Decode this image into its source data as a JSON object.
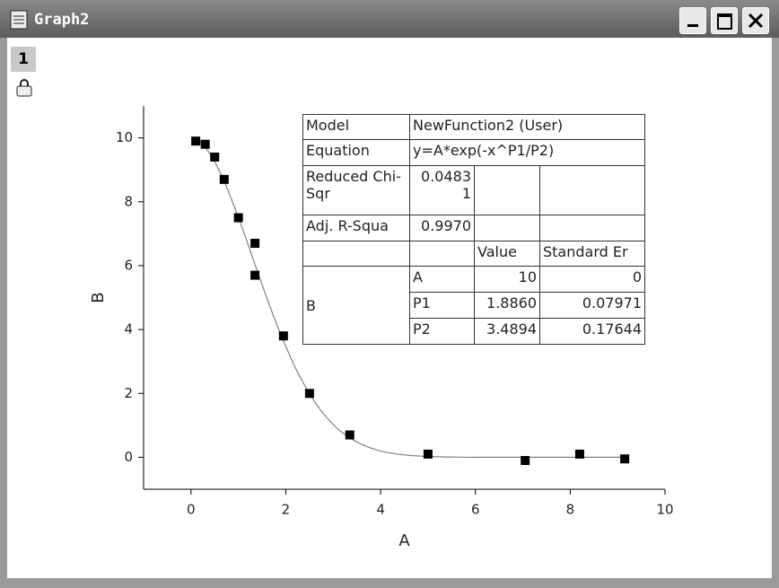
{
  "window": {
    "title": "Graph2",
    "layer": "1"
  },
  "chart_data": {
    "type": "scatter",
    "x_label": "A",
    "y_label": "B",
    "x": [
      0.1,
      0.3,
      0.5,
      0.7,
      1.0,
      1.35,
      1.35,
      1.95,
      2.5,
      3.35,
      5.0,
      7.05,
      8.2,
      9.15
    ],
    "values": [
      9.9,
      9.8,
      9.4,
      8.7,
      7.5,
      6.7,
      5.7,
      3.8,
      2.0,
      0.7,
      0.1,
      -0.1,
      0.1,
      -0.05
    ],
    "color": "#000000",
    "fit_color": "#808080",
    "xlim": [
      -1,
      10
    ],
    "xticks": [
      0,
      2,
      4,
      6,
      8,
      10
    ],
    "ylim": [
      -1,
      11
    ],
    "yticks": [
      0,
      2,
      4,
      6,
      8,
      10
    ],
    "fit_table": {
      "rows": [
        [
          "Model",
          "NewFunction2 (User)"
        ],
        [
          "Equation",
          "y=A*exp(-x^P1/P2)"
        ],
        [
          "Reduced Chi-Sqr",
          "0.04831"
        ],
        [
          "Adj. R-Squa",
          "0.9970"
        ]
      ],
      "columns": [
        "Value",
        "Standard Er"
      ],
      "dependent": "B",
      "params": [
        [
          "A",
          "10",
          "0"
        ],
        [
          "P1",
          "1.8860",
          "0.07971"
        ],
        [
          "P2",
          "3.4894",
          "0.17644"
        ]
      ]
    }
  }
}
